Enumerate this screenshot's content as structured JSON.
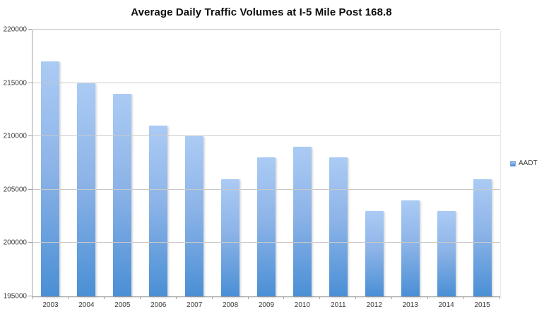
{
  "chart_data": {
    "type": "bar",
    "title": "Average Daily Traffic Volumes at I-5 Mile Post 168.8",
    "categories": [
      "2003",
      "2004",
      "2005",
      "2006",
      "2007",
      "2008",
      "2009",
      "2010",
      "2011",
      "2012",
      "2013",
      "2014",
      "2015"
    ],
    "series": [
      {
        "name": "AADT",
        "values": [
          217000,
          215000,
          214000,
          211000,
          210000,
          206000,
          208000,
          209000,
          208000,
          203000,
          204000,
          203000,
          206000
        ]
      }
    ],
    "xlabel": "",
    "ylabel": "",
    "ylim": [
      195000,
      220000
    ],
    "ytick_interval": 5000,
    "ytick_labels": [
      "195000",
      "200000",
      "205000",
      "210000",
      "215000",
      "220000"
    ],
    "grid": true,
    "legend_position": "right",
    "colors": {
      "bar_gradient_top": "#abcbf4",
      "bar_gradient_bottom": "#4a8fd5",
      "gridline": "#c9c9c9",
      "axis": "#a3a3a3",
      "axis_text": "#3a3a3a",
      "title_text": "#0d0d0d",
      "background": "#ffffff"
    }
  }
}
